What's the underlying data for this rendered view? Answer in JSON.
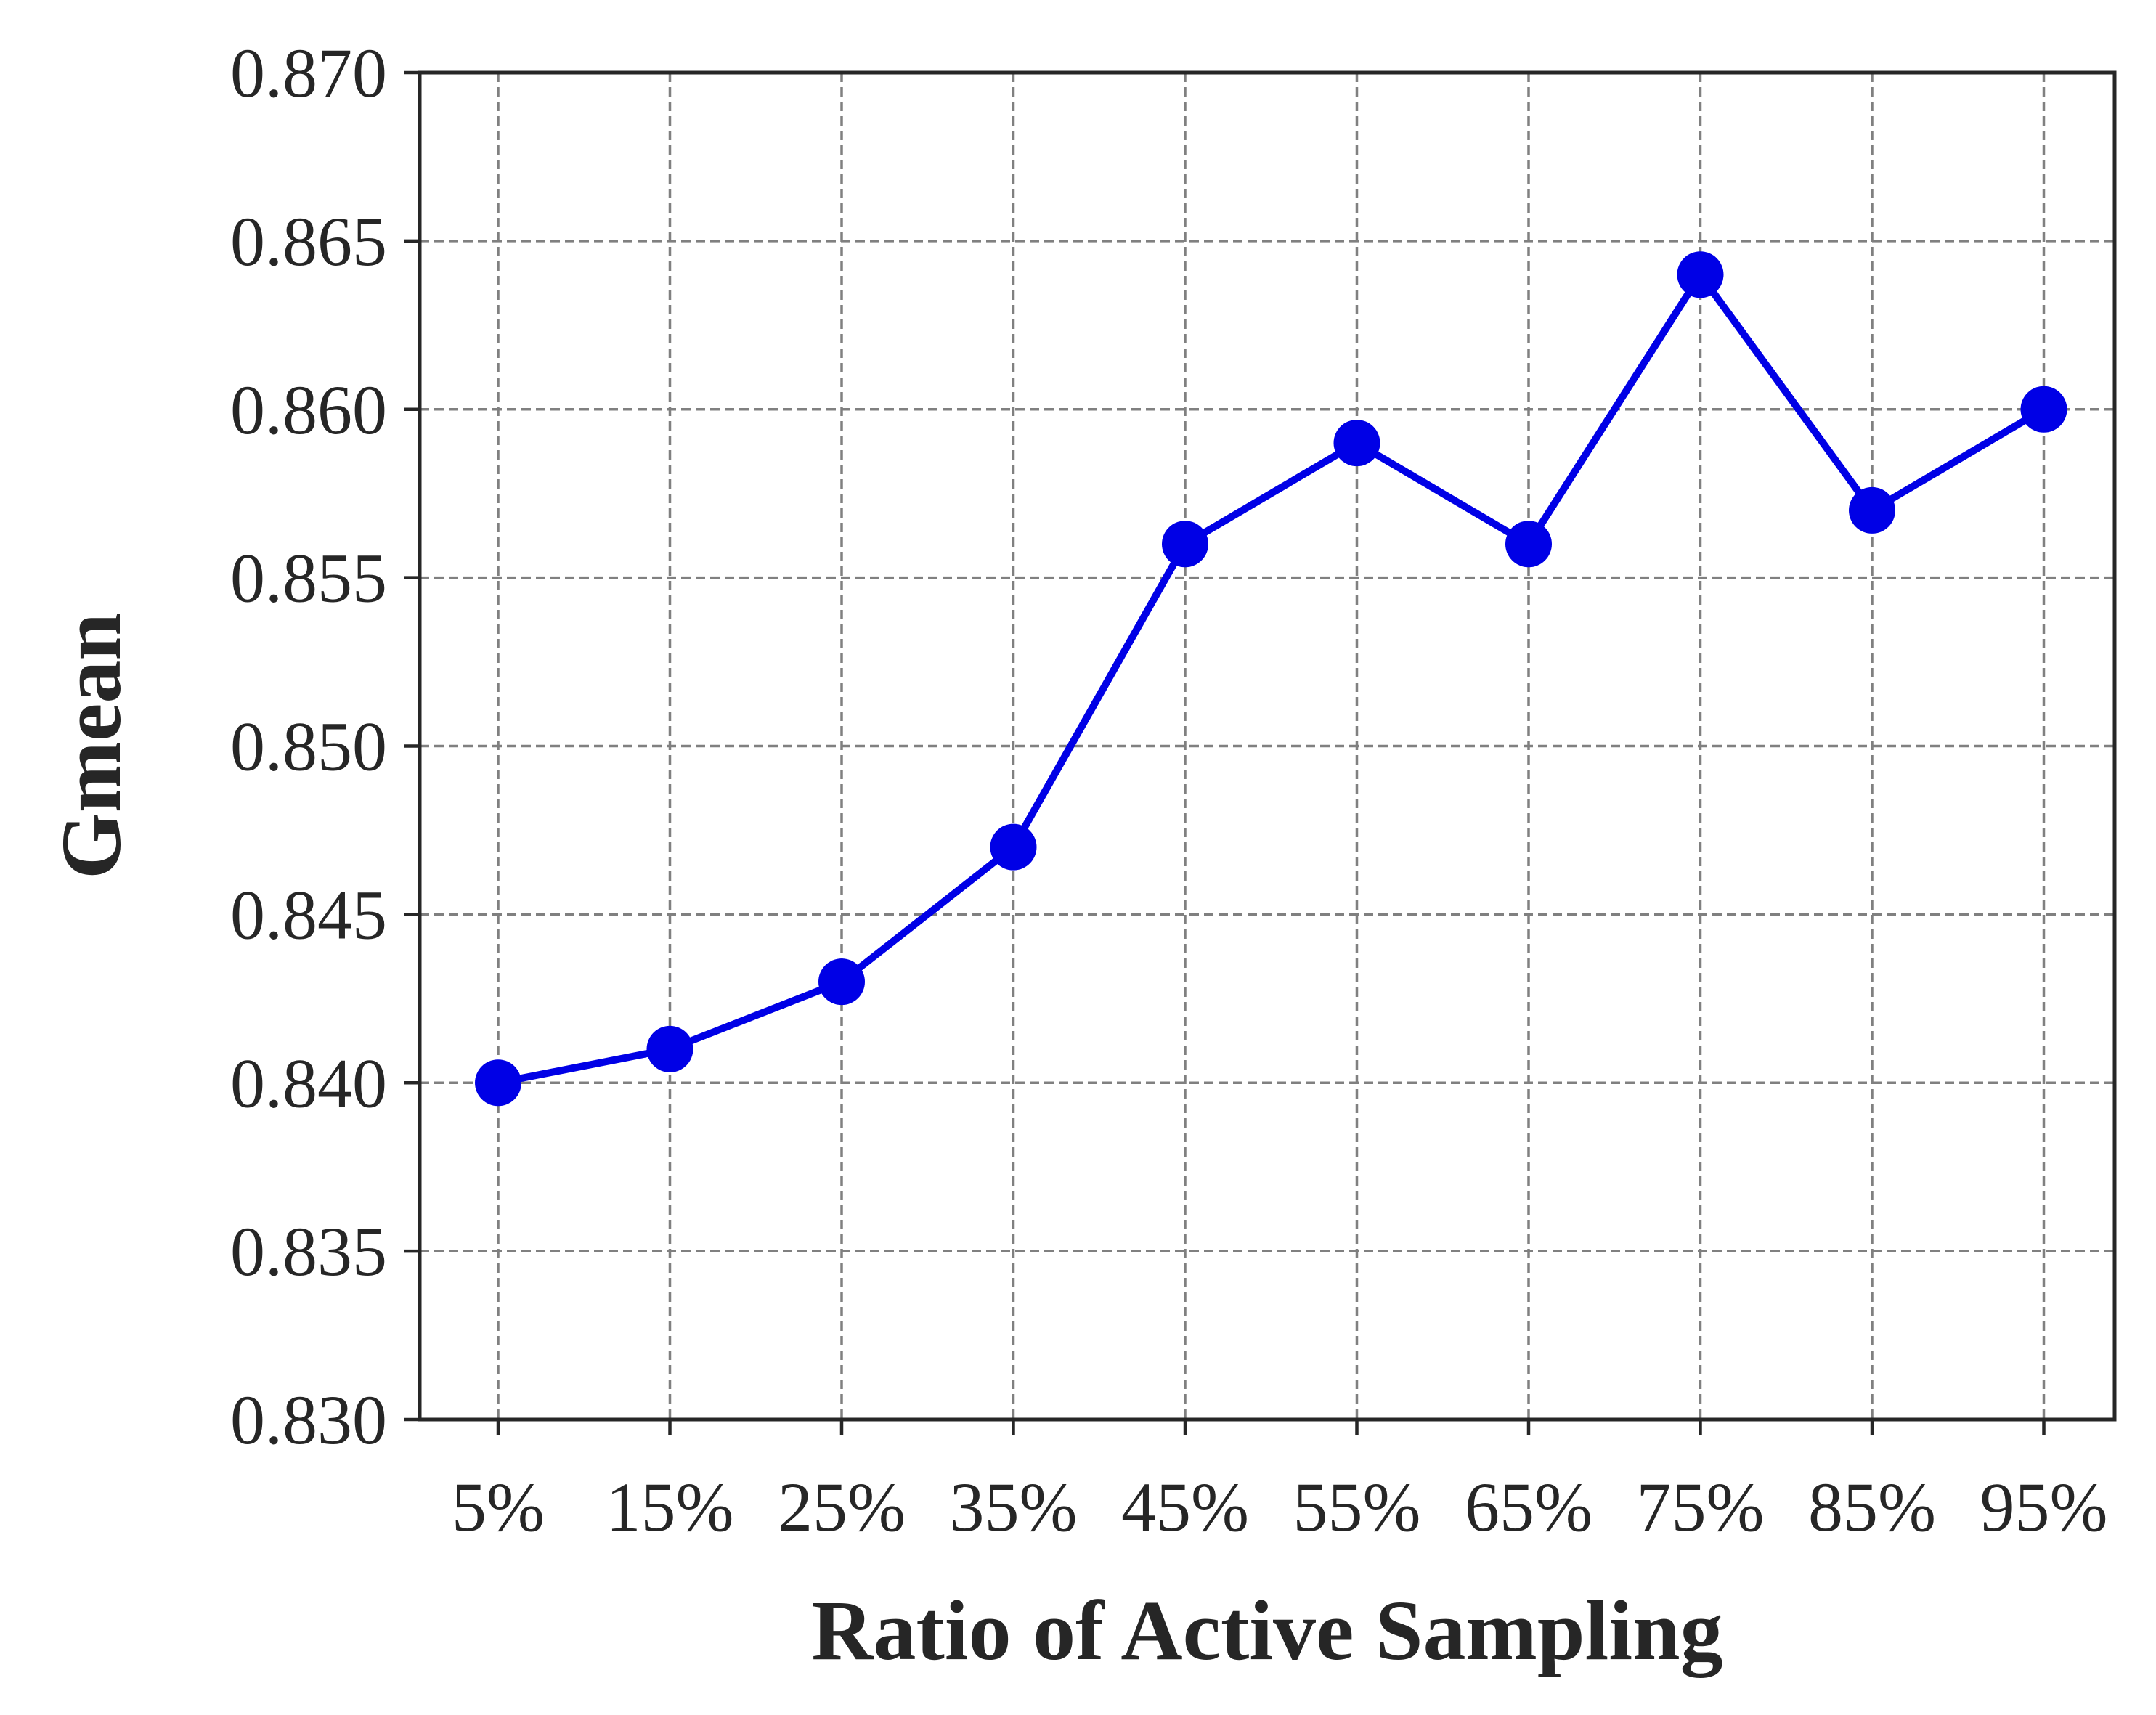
{
  "chart_data": {
    "type": "line",
    "xlabel": "Ratio of Active Sampling",
    "ylabel": "Gmean",
    "categories": [
      "5%",
      "15%",
      "25%",
      "35%",
      "45%",
      "55%",
      "65%",
      "75%",
      "85%",
      "95%"
    ],
    "series": [
      {
        "values": [
          0.84,
          0.841,
          0.843,
          0.847,
          0.856,
          0.859,
          0.856,
          0.864,
          0.857,
          0.86
        ],
        "color": "#0000e6",
        "marker": "circle"
      }
    ],
    "ylim": [
      0.83,
      0.87
    ],
    "yticks": [
      "0.830",
      "0.835",
      "0.840",
      "0.845",
      "0.850",
      "0.855",
      "0.860",
      "0.865",
      "0.870"
    ],
    "grid": true,
    "grid_style": "dashed",
    "legend": "none"
  }
}
